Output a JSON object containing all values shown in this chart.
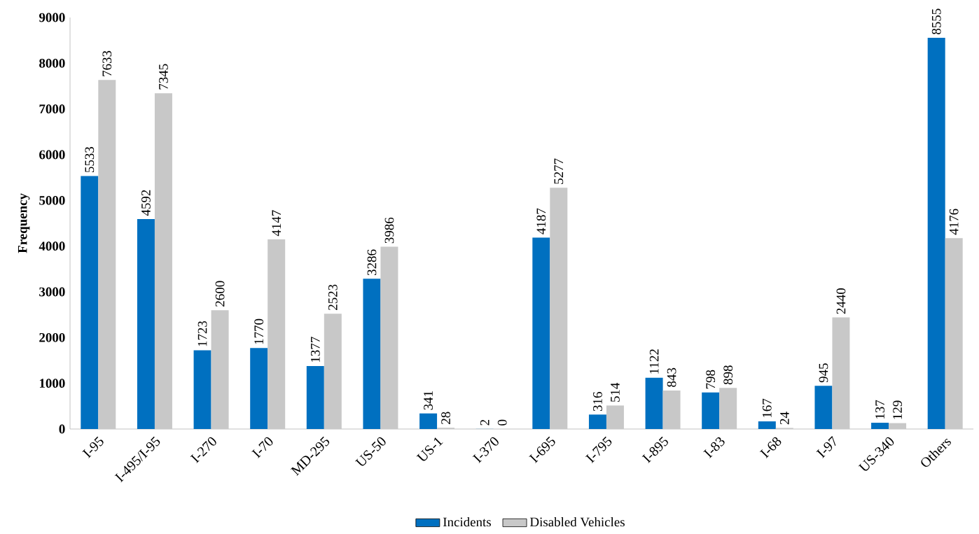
{
  "chart_data": {
    "type": "bar",
    "ylabel": "Frequency",
    "categories": [
      "I-95",
      "I-495/I-95",
      "I-270",
      "I-70",
      "MD-295",
      "US-50",
      "US-1",
      "I-370",
      "I-695",
      "I-795",
      "I-895",
      "I-83",
      "I-68",
      "I-97",
      "US-340",
      "Others"
    ],
    "series": [
      {
        "name": "Incidents",
        "color": "#0070c0",
        "values": [
          5533,
          4592,
          1723,
          1770,
          1377,
          3286,
          341,
          2,
          4187,
          316,
          1122,
          798,
          167,
          945,
          137,
          8555
        ]
      },
      {
        "name": "Disabled Vehicles",
        "color": "#c8c8c8",
        "values": [
          7633,
          7345,
          2600,
          4147,
          2523,
          3986,
          28,
          0,
          5277,
          514,
          843,
          898,
          24,
          2440,
          129,
          4176
        ]
      }
    ],
    "ylim": [
      0,
      9000
    ],
    "yticks": [
      0,
      1000,
      2000,
      3000,
      4000,
      5000,
      6000,
      7000,
      8000,
      9000
    ],
    "data_labels": true,
    "legend": "bottom"
  }
}
